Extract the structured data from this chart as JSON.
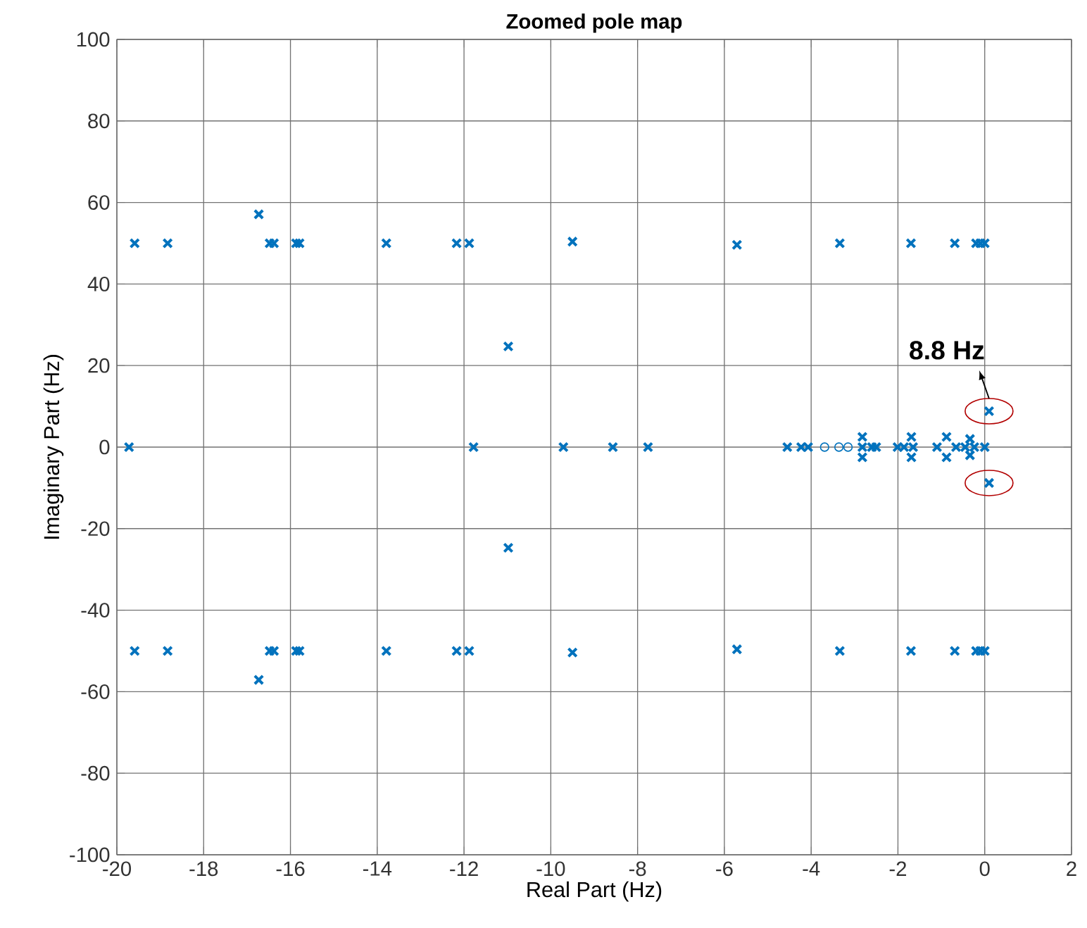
{
  "chart_data": {
    "type": "scatter",
    "title": "Zoomed pole map",
    "xlabel": "Real Part (Hz)",
    "ylabel": "Imaginary Part (Hz)",
    "xlim": [
      -20,
      2
    ],
    "xticks": [
      -20,
      -18,
      -16,
      -14,
      -12,
      -10,
      -8,
      -6,
      -4,
      -2,
      0,
      2
    ],
    "ylim": [
      -100,
      100
    ],
    "yticks": [
      -100,
      -80,
      -60,
      -40,
      -20,
      0,
      20,
      40,
      60,
      80,
      100
    ],
    "grid": true,
    "series": [
      {
        "color": "#0072bd",
        "marker": "cross",
        "x": [
          -19.59,
          -18.83,
          -16.73,
          -16.48,
          -16.38,
          -15.87,
          -15.79,
          -13.79,
          -12.17,
          -11.88,
          -9.5,
          -5.71,
          -3.34,
          -1.7,
          -0.69,
          -0.2,
          -0.1,
          0,
          -19.59,
          -18.83,
          -16.73,
          -16.48,
          -16.38,
          -15.87,
          -15.79,
          -13.79,
          -12.17,
          -11.88,
          -9.5,
          -5.71,
          -3.34,
          -1.7,
          -0.69,
          -0.2,
          -0.1,
          0,
          -10.98,
          -10.98,
          -19.72,
          -11.78,
          -9.71,
          -8.57,
          -7.76,
          -4.55,
          -4.23,
          -4.07,
          -2.82,
          -2.82,
          -2.82,
          -2.6,
          -2.5,
          -2.01,
          -1.86,
          -1.69,
          -1.69,
          -1.65,
          -1.1,
          -0.88,
          -0.88,
          -0.66,
          -0.45,
          -0.34,
          -0.34,
          -0.24,
          0,
          0.1,
          0.1
        ],
        "values": [
          50,
          50,
          57.1,
          50,
          50,
          50,
          50,
          50,
          50,
          50,
          50.4,
          49.6,
          50,
          50,
          50,
          50,
          50,
          50,
          -50,
          -50,
          -57.1,
          -50,
          -50,
          -50,
          -50,
          -50,
          -50,
          -50,
          -50.4,
          -49.6,
          -50,
          -50,
          -50,
          -50,
          -50,
          -50,
          24.7,
          -24.7,
          0,
          0,
          0,
          0,
          0,
          0,
          0,
          0,
          2.5,
          0,
          -2.5,
          0,
          0,
          0,
          0,
          2.5,
          -2.5,
          0,
          0,
          2.5,
          -2.5,
          0,
          0,
          2,
          -2,
          0,
          0,
          8.8,
          -8.8
        ]
      },
      {
        "color": "#0072bd",
        "marker": "circle",
        "x": [
          -3.69,
          -3.36,
          -3.15
        ],
        "values": [
          0,
          0,
          0
        ]
      }
    ],
    "annotations": [
      {
        "text": "8.8 Hz",
        "x": 0.1,
        "y": 8.8
      }
    ]
  }
}
